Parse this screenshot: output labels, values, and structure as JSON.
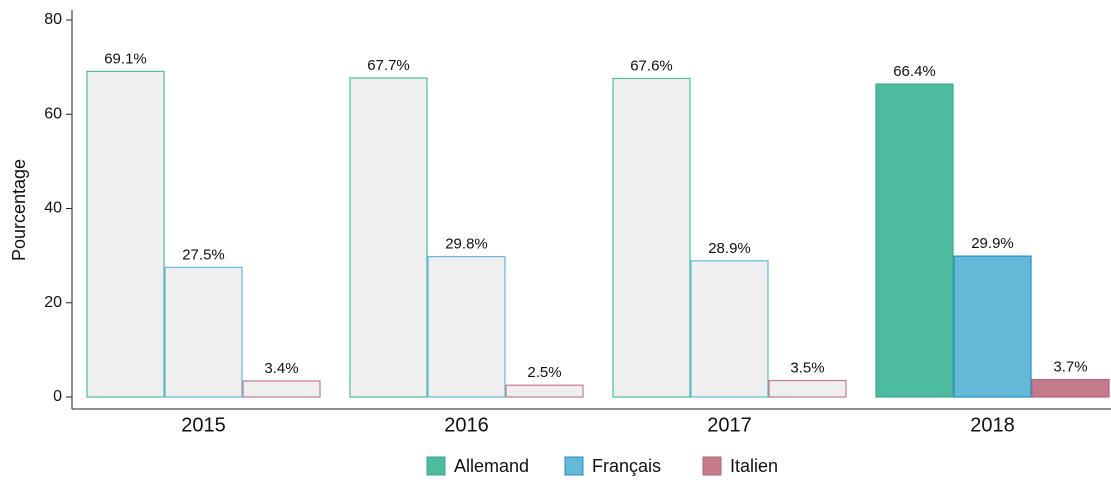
{
  "chart_data": {
    "type": "bar",
    "y_label": "Pourcentage",
    "categories": [
      "2015",
      "2016",
      "2017",
      "2018"
    ],
    "series": [
      {
        "name": "Allemand",
        "color": "#4dbb9f",
        "stroke": "#3ea98a",
        "values": [
          69.1,
          67.7,
          67.6,
          66.4
        ],
        "value_labels": [
          "69.1%",
          "67.7%",
          "67.6%",
          "66.4%"
        ]
      },
      {
        "name": "Français",
        "color": "#65b9d8",
        "stroke": "#2a8cc2",
        "values": [
          27.5,
          29.8,
          28.9,
          29.9
        ],
        "value_labels": [
          "27.5%",
          "29.8%",
          "28.9%",
          "29.9%"
        ]
      },
      {
        "name": "Italien",
        "color": "#c57b8c",
        "stroke": "#b3647a",
        "values": [
          3.4,
          2.5,
          3.5,
          3.7
        ],
        "value_labels": [
          "3.4%",
          "2.5%",
          "3.5%",
          "3.7%"
        ]
      }
    ],
    "muted_color": "#efefef",
    "highlight": 3,
    "ylim": [
      0,
      80
    ],
    "yticks": [
      0,
      20,
      40,
      60,
      80
    ],
    "legend": "bottom"
  }
}
